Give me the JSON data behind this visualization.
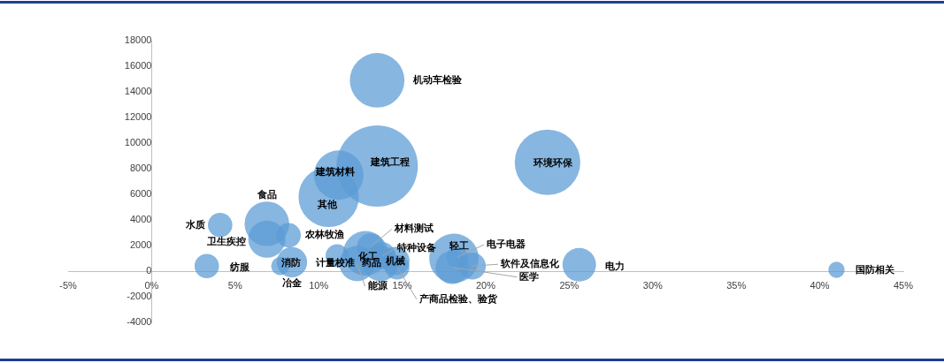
{
  "chart_data": {
    "type": "bubble",
    "xlim": [
      -5,
      45
    ],
    "ylim": [
      -4000,
      18000
    ],
    "xticks": [
      {
        "value": -5,
        "label": "-5%"
      },
      {
        "value": 0,
        "label": "0%"
      },
      {
        "value": 5,
        "label": "5%"
      },
      {
        "value": 10,
        "label": "10%"
      },
      {
        "value": 15,
        "label": "15%"
      },
      {
        "value": 20,
        "label": "20%"
      },
      {
        "value": 25,
        "label": "25%"
      },
      {
        "value": 30,
        "label": "30%"
      },
      {
        "value": 35,
        "label": "35%"
      },
      {
        "value": 40,
        "label": "40%"
      },
      {
        "value": 45,
        "label": "45%"
      }
    ],
    "yticks": [
      -4000,
      -2000,
      0,
      2000,
      4000,
      6000,
      8000,
      10000,
      12000,
      14000,
      16000,
      18000
    ],
    "grid": false,
    "series": [
      {
        "name": "机动车检验",
        "color": "#5b9bd5",
        "x": [
          13.5
        ],
        "values": [
          14900
        ],
        "sizes": [
          0.45
        ]
      },
      {
        "name": "建筑工程",
        "color": "#5b9bd5",
        "x": [
          13.5
        ],
        "values": [
          8200
        ],
        "sizes": [
          1
        ]
      },
      {
        "name": "建筑材料",
        "color": "#5b9bd5",
        "x": [
          11.2
        ],
        "values": [
          7500
        ],
        "sizes": [
          0.37
        ]
      },
      {
        "name": "其他",
        "color": "#5b9bd5",
        "x": [
          10.6
        ],
        "values": [
          5800
        ],
        "sizes": [
          0.55
        ]
      },
      {
        "name": "环境环保",
        "color": "#5b9bd5",
        "x": [
          23.7
        ],
        "values": [
          8500
        ],
        "sizes": [
          0.65
        ]
      },
      {
        "name": "水质",
        "color": "#5b9bd5",
        "x": [
          4.1
        ],
        "values": [
          3600
        ],
        "sizes": [
          0.09
        ]
      },
      {
        "name": "食品",
        "color": "#5b9bd5",
        "x": [
          6.9
        ],
        "values": [
          3700
        ],
        "sizes": [
          0.3
        ]
      },
      {
        "name": "卫生疾控",
        "color": "#5b9bd5",
        "x": [
          6.9
        ],
        "values": [
          2500
        ],
        "sizes": [
          0.21
        ]
      },
      {
        "name": "农林牧渔",
        "color": "#5b9bd5",
        "x": [
          8.2
        ],
        "values": [
          2800
        ],
        "sizes": [
          0.09
        ]
      },
      {
        "name": "纺服",
        "color": "#5b9bd5",
        "x": [
          3.3
        ],
        "values": [
          400
        ],
        "sizes": [
          0.09
        ]
      },
      {
        "name": "消防",
        "color": "#5b9bd5",
        "x": [
          8.4
        ],
        "values": [
          700
        ],
        "sizes": [
          0.14
        ]
      },
      {
        "name": "冶金",
        "color": "#5b9bd5",
        "x": [
          7.7
        ],
        "values": [
          400
        ],
        "sizes": [
          0.05
        ]
      },
      {
        "name": "计量校准",
        "color": "#5b9bd5",
        "x": [
          11.1
        ],
        "values": [
          1200
        ],
        "sizes": [
          0.08
        ]
      },
      {
        "name": "化工",
        "color": "#5b9bd5",
        "x": [
          12.8
        ],
        "values": [
          1400
        ],
        "sizes": [
          0.3
        ]
      },
      {
        "name": "材料测试",
        "color": "#5b9bd5",
        "x": [
          13.1
        ],
        "values": [
          1900
        ],
        "sizes": [
          0.11
        ]
      },
      {
        "name": "能源",
        "color": "#5b9bd5",
        "x": [
          12.3
        ],
        "values": [
          600
        ],
        "sizes": [
          0.19
        ]
      },
      {
        "name": "药品",
        "color": "#5b9bd5",
        "x": [
          13.7
        ],
        "values": [
          600
        ],
        "sizes": [
          0.19
        ]
      },
      {
        "name": "特种设备",
        "color": "#5b9bd5",
        "x": [
          13.8
        ],
        "values": [
          1200
        ],
        "sizes": [
          0.11
        ]
      },
      {
        "name": "机械",
        "color": "#5b9bd5",
        "x": [
          14.6
        ],
        "values": [
          800
        ],
        "sizes": [
          0.12
        ]
      },
      {
        "name": "产商品检验、验货",
        "color": "#5b9bd5",
        "x": [
          14.7
        ],
        "values": [
          300
        ],
        "sizes": [
          0.09
        ]
      },
      {
        "name": "轻工",
        "color": "#5b9bd5",
        "x": [
          18.1
        ],
        "values": [
          1000
        ],
        "sizes": [
          0.37
        ]
      },
      {
        "name": "电子电器",
        "color": "#5b9bd5",
        "x": [
          18.3
        ],
        "values": [
          1100
        ],
        "sizes": [
          0.07
        ]
      },
      {
        "name": "医学",
        "color": "#5b9bd5",
        "x": [
          18.0
        ],
        "values": [
          300
        ],
        "sizes": [
          0.17
        ]
      },
      {
        "name": "软件及信息化",
        "color": "#5b9bd5",
        "x": [
          19.2
        ],
        "values": [
          400
        ],
        "sizes": [
          0.11
        ]
      },
      {
        "name": "电力",
        "color": "#5b9bd5",
        "x": [
          25.6
        ],
        "values": [
          500
        ],
        "sizes": [
          0.17
        ]
      },
      {
        "name": "国防相关",
        "color": "#5b9bd5",
        "x": [
          41.0
        ],
        "values": [
          100
        ],
        "sizes": [
          0.04
        ]
      }
    ]
  }
}
